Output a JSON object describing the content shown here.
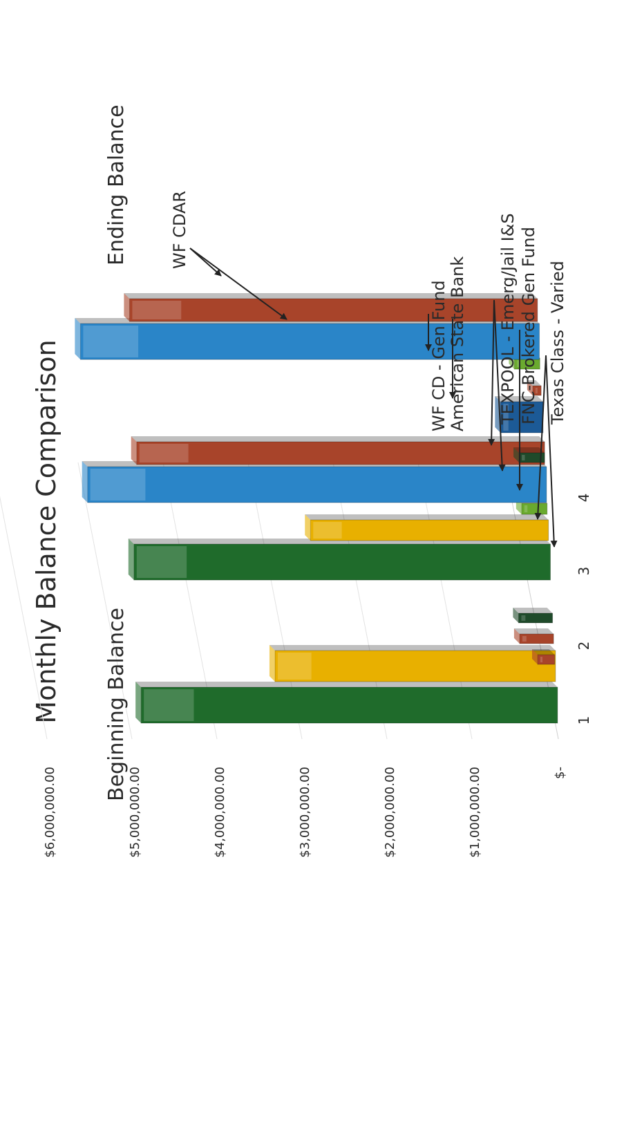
{
  "chart_data": {
    "type": "bar",
    "title": "Monthly Balance Comparison",
    "xlabel": "",
    "ylabel": "",
    "y_tick_labels": [
      "$-",
      "$1,000,000.00",
      "$2,000,000.00",
      "$3,000,000.00",
      "$4,000,000.00",
      "$5,000,000.00",
      "$6,000,000.00"
    ],
    "ylim": [
      0,
      6000000
    ],
    "grid": true,
    "orientation": "rotated 90 degrees counter-clockwise, 3D bars",
    "group_labels": [
      "Beginning Balance",
      "Ending Balance"
    ],
    "categories": [
      "1",
      "2",
      "3",
      "4"
    ],
    "series_labels": [
      "WF CDAR",
      "WF CD - Gen Fund",
      "American State Bank",
      "TEXPOOL - Emerg/Jail I&S",
      "FNC-Brokered Gen Fund",
      "Texas Class - Varied"
    ],
    "beginning_balance": [
      {
        "row": "1",
        "color": "#1f6b2b",
        "value": 4900000
      },
      {
        "row": "1",
        "color": "#e8b000",
        "value": 3300000
      },
      {
        "row": "2",
        "color": "#a8442a",
        "value": 200000
      },
      {
        "row": "2",
        "color": "#a8442a",
        "value": 400000
      },
      {
        "row": "2",
        "color": "#1f4a2a",
        "value": 400000
      },
      {
        "row": "3",
        "color": "#1f6b2b",
        "value": 4900000
      },
      {
        "row": "3",
        "color": "#e8b000",
        "value": 2800000
      },
      {
        "row": "3",
        "color": "#6aaa2e",
        "value": 300000
      },
      {
        "row": "4",
        "color": "#2a85c8",
        "value": 5400000
      },
      {
        "row": "4",
        "color": "#a8442a",
        "value": 4800000
      }
    ],
    "ending_balance": [
      {
        "row": "1",
        "color": "#6aaa2e",
        "value": 300000
      },
      {
        "row": "1",
        "color": "#a8442a",
        "value": 100000
      },
      {
        "row": "2",
        "color": "#1c5a96",
        "value": 500000
      },
      {
        "row": "2",
        "color": "#1f4a2a",
        "value": 300000
      },
      {
        "row": "4",
        "color": "#2a85c8",
        "value": 5400000
      },
      {
        "row": "4",
        "color": "#a8442a",
        "value": 4800000
      }
    ]
  }
}
